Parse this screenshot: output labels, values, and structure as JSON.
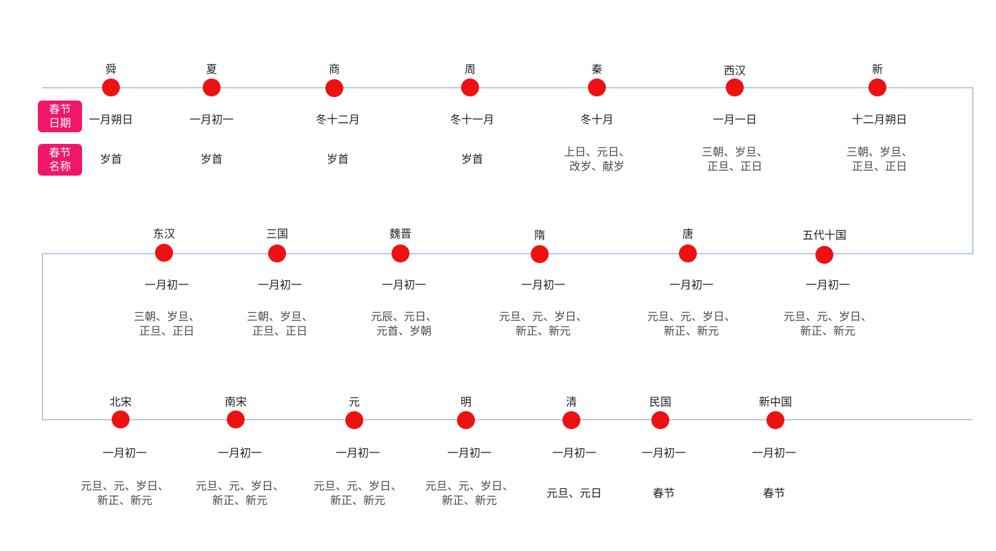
{
  "legend": {
    "date_label": [
      "春节",
      "日期"
    ],
    "name_label": [
      "春节",
      "名称"
    ],
    "badge_color": "#f0166a"
  },
  "colors": {
    "node": "#ee1111",
    "track": "#7f9fd3"
  },
  "rows": [
    {
      "items": [
        {
          "era": "舜",
          "date": "一月朔日",
          "names": [
            "岁首"
          ]
        },
        {
          "era": "夏",
          "date": "一月初一",
          "names": [
            "岁首"
          ]
        },
        {
          "era": "商",
          "date": "冬十二月",
          "names": [
            "岁首"
          ]
        },
        {
          "era": "周",
          "date": "冬十一月",
          "names": [
            "岁首"
          ]
        },
        {
          "era": "秦",
          "date": "冬十月",
          "names": [
            "上日、元日、",
            "改岁、献岁"
          ]
        },
        {
          "era": "西汉",
          "date": "一月一日",
          "names": [
            "三朝、岁旦、",
            "正旦、正日"
          ]
        },
        {
          "era": "新",
          "date": "十二月朔日",
          "names": [
            "三朝、岁旦、",
            "正旦、正日"
          ]
        }
      ]
    },
    {
      "items": [
        {
          "era": "东汉",
          "date": "一月初一",
          "names": [
            "三朝、岁旦、",
            "正旦、正日"
          ]
        },
        {
          "era": "三国",
          "date": "一月初一",
          "names": [
            "三朝、岁旦、",
            "正旦、正日"
          ]
        },
        {
          "era": "魏晋",
          "date": "一月初一",
          "names": [
            "元辰、元日、",
            "元首、岁朝"
          ]
        },
        {
          "era": "隋",
          "date": "一月初一",
          "names": [
            "元旦、元、岁日、",
            "新正、新元"
          ]
        },
        {
          "era": "唐",
          "date": "一月初一",
          "names": [
            "元旦、元、岁日、",
            "新正、新元"
          ]
        },
        {
          "era": "五代十国",
          "date": "一月初一",
          "names": [
            "元旦、元、岁日、",
            "新正、新元"
          ]
        }
      ]
    },
    {
      "items": [
        {
          "era": "北宋",
          "date": "一月初一",
          "names": [
            "元旦、元、岁日、",
            "新正、新元"
          ]
        },
        {
          "era": "南宋",
          "date": "一月初一",
          "names": [
            "元旦、元、岁日、",
            "新正、新元"
          ]
        },
        {
          "era": "元",
          "date": "一月初一",
          "names": [
            "元旦、元、岁日、",
            "新正、新元"
          ]
        },
        {
          "era": "明",
          "date": "一月初一",
          "names": [
            "元旦、元、岁日、",
            "新正、新元"
          ]
        },
        {
          "era": "清",
          "date": "一月初一",
          "names": [
            "元旦、元日"
          ]
        },
        {
          "era": "民国",
          "date": "一月初一",
          "names": [
            "春节"
          ]
        },
        {
          "era": "新中国",
          "date": "一月初一",
          "names": [
            "春节"
          ]
        }
      ]
    }
  ]
}
